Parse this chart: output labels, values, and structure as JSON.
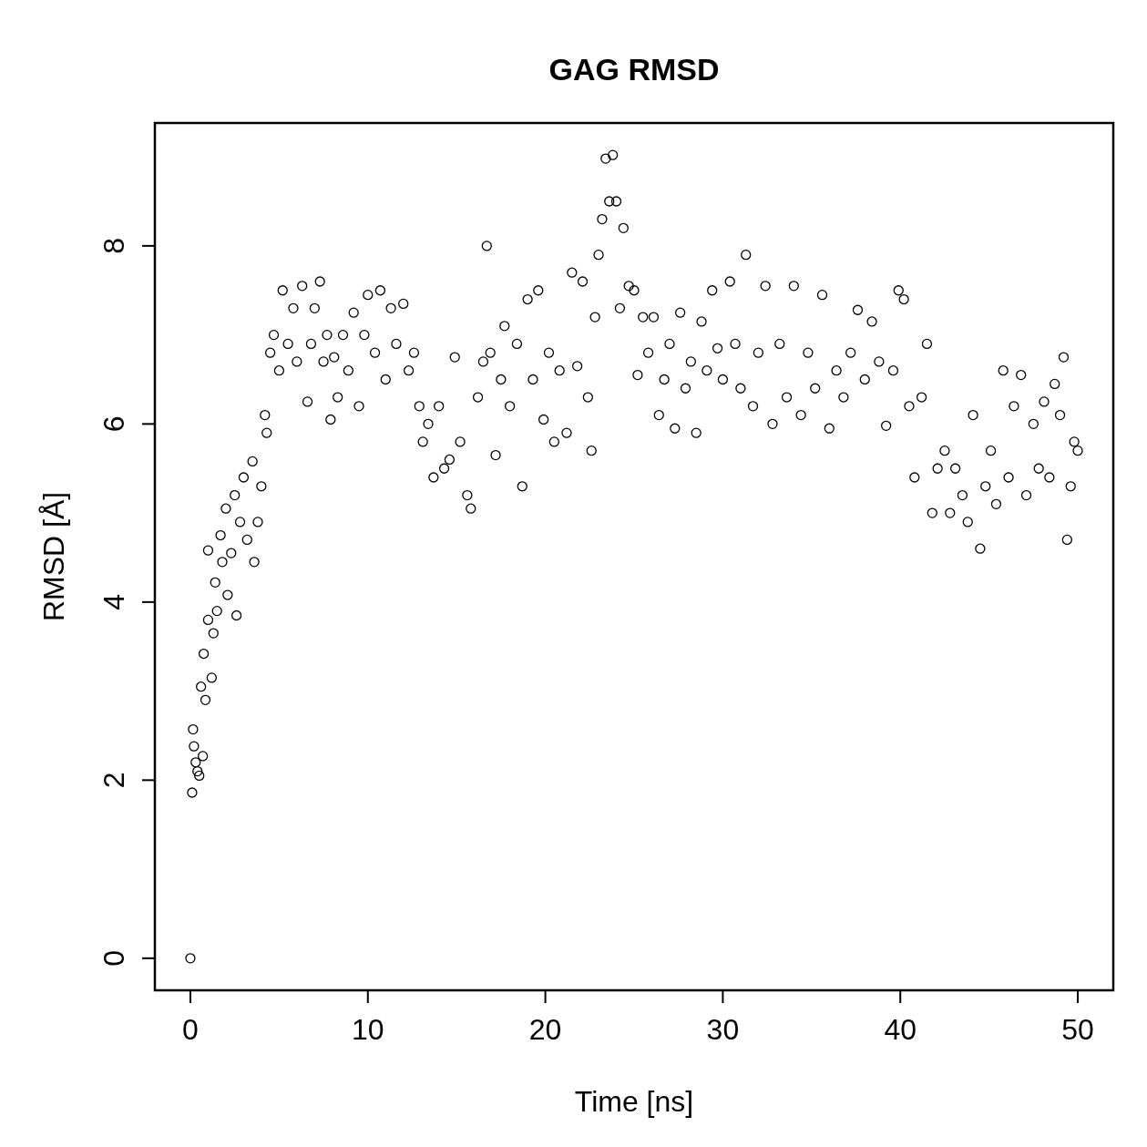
{
  "chart_data": {
    "type": "scatter",
    "title": "GAG RMSD",
    "xlabel": "Time [ns]",
    "ylabel": "RMSD [Å]",
    "xlim": [
      -2,
      52
    ],
    "ylim": [
      -0.36,
      9.38
    ],
    "xticks": [
      0,
      10,
      20,
      30,
      40,
      50
    ],
    "yticks": [
      0,
      2,
      4,
      6,
      8
    ],
    "marker": "circle",
    "series": [
      {
        "color": "#000000",
        "x": [
          0,
          0.1,
          0.15,
          0.2,
          0.3,
          0.4,
          0.5,
          0.6,
          0.7,
          0.75,
          0.85,
          1.0,
          1.0,
          1.2,
          1.3,
          1.4,
          1.5,
          1.7,
          1.8,
          2.0,
          2.1,
          2.3,
          2.5,
          2.6,
          2.8,
          3.0,
          3.2,
          3.5,
          3.6,
          3.8,
          4.0,
          4.2,
          4.3,
          4.5,
          4.7,
          5.0,
          5.2,
          5.5,
          5.8,
          6.0,
          6.3,
          6.6,
          6.8,
          7.0,
          7.3,
          7.5,
          7.7,
          7.9,
          8.1,
          8.3,
          8.6,
          8.9,
          9.2,
          9.5,
          9.8,
          10.0,
          10.4,
          10.7,
          11.0,
          11.3,
          11.6,
          12.0,
          12.3,
          12.6,
          12.9,
          13.1,
          13.4,
          13.7,
          14.0,
          14.3,
          14.6,
          14.9,
          15.2,
          15.6,
          15.8,
          16.2,
          16.5,
          16.7,
          16.9,
          17.2,
          17.5,
          17.7,
          18.0,
          18.4,
          18.7,
          19.0,
          19.3,
          19.6,
          19.9,
          20.2,
          20.5,
          20.8,
          21.2,
          21.5,
          21.8,
          22.1,
          22.4,
          22.6,
          22.8,
          23.0,
          23.2,
          23.4,
          23.6,
          23.8,
          24.0,
          24.2,
          24.4,
          24.7,
          25.0,
          25.2,
          25.5,
          25.8,
          26.1,
          26.4,
          26.7,
          27.0,
          27.3,
          27.6,
          27.9,
          28.2,
          28.5,
          28.8,
          29.1,
          29.4,
          29.7,
          30.0,
          30.4,
          30.7,
          31.0,
          31.3,
          31.7,
          32.0,
          32.4,
          32.8,
          33.2,
          33.6,
          34.0,
          34.4,
          34.8,
          35.2,
          35.6,
          36.0,
          36.4,
          36.8,
          37.2,
          37.6,
          38.0,
          38.4,
          38.8,
          39.2,
          39.6,
          39.9,
          40.2,
          40.5,
          40.8,
          41.2,
          41.5,
          41.8,
          42.1,
          42.5,
          42.8,
          43.1,
          43.5,
          43.8,
          44.1,
          44.5,
          44.8,
          45.1,
          45.4,
          45.8,
          46.1,
          46.4,
          46.8,
          47.1,
          47.5,
          47.8,
          48.1,
          48.4,
          48.7,
          49.0,
          49.2,
          49.4,
          49.6,
          49.8,
          50.0
        ],
        "values": [
          0,
          1.86,
          2.57,
          2.38,
          2.2,
          2.1,
          2.05,
          3.05,
          2.27,
          3.42,
          2.9,
          3.8,
          4.58,
          3.15,
          3.65,
          4.22,
          3.9,
          4.75,
          4.45,
          5.05,
          4.08,
          4.55,
          5.2,
          3.85,
          4.9,
          5.4,
          4.7,
          5.58,
          4.45,
          4.9,
          5.3,
          6.1,
          5.9,
          6.8,
          7.0,
          6.6,
          7.5,
          6.9,
          7.3,
          6.7,
          7.55,
          6.25,
          6.9,
          7.3,
          7.6,
          6.7,
          7.0,
          6.05,
          6.75,
          6.3,
          7.0,
          6.6,
          7.25,
          6.2,
          7.0,
          7.45,
          6.8,
          7.5,
          6.5,
          7.3,
          6.9,
          7.35,
          6.6,
          6.8,
          6.2,
          5.8,
          6.0,
          5.4,
          6.2,
          5.5,
          5.6,
          6.75,
          5.8,
          5.2,
          5.05,
          6.3,
          6.7,
          8.0,
          6.8,
          5.65,
          6.5,
          7.1,
          6.2,
          6.9,
          5.3,
          7.4,
          6.5,
          7.5,
          6.05,
          6.8,
          5.8,
          6.6,
          5.9,
          7.7,
          6.65,
          7.6,
          6.3,
          5.7,
          7.2,
          7.9,
          8.3,
          8.98,
          8.5,
          9.02,
          8.5,
          7.3,
          8.2,
          7.55,
          7.5,
          6.55,
          7.2,
          6.8,
          7.2,
          6.1,
          6.5,
          6.9,
          5.95,
          7.25,
          6.4,
          6.7,
          5.9,
          7.15,
          6.6,
          7.5,
          6.85,
          6.5,
          7.6,
          6.9,
          6.4,
          7.9,
          6.2,
          6.8,
          7.55,
          6.0,
          6.9,
          6.3,
          7.55,
          6.1,
          6.8,
          6.4,
          7.45,
          5.95,
          6.6,
          6.3,
          6.8,
          7.28,
          6.5,
          7.15,
          6.7,
          5.98,
          6.6,
          7.5,
          7.4,
          6.2,
          5.4,
          6.3,
          6.9,
          5.0,
          5.5,
          5.7,
          5.0,
          5.5,
          5.2,
          4.9,
          6.1,
          4.6,
          5.3,
          5.7,
          5.1,
          6.6,
          5.4,
          6.2,
          6.55,
          5.2,
          6.0,
          5.5,
          6.25,
          5.4,
          6.45,
          6.1,
          6.75,
          4.7,
          5.3,
          5.8,
          5.7
        ]
      }
    ]
  }
}
